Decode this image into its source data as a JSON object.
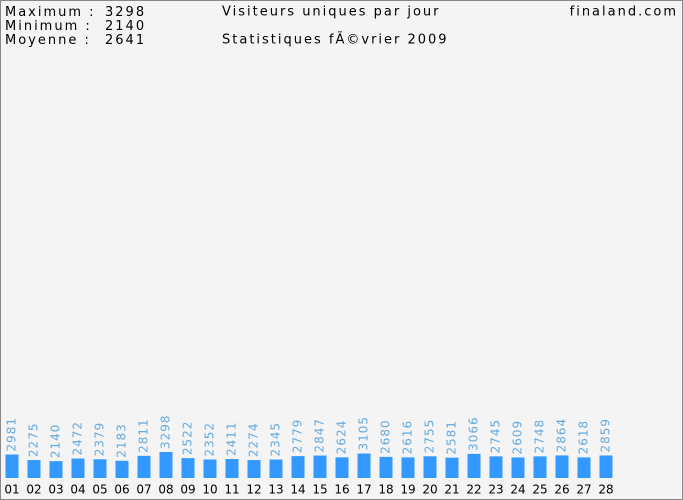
{
  "chart_data": {
    "type": "bar",
    "title": "Visiteurs uniques par jour",
    "subtitle": "Statistiques fÃ©vrier 2009",
    "site": "finaland.com",
    "stats": [
      {
        "label": "Maximum :",
        "value": 3298
      },
      {
        "label": "Minimum :",
        "value": 2140
      },
      {
        "label": "Moyenne :",
        "value": 2641
      }
    ],
    "categories": [
      "01",
      "02",
      "03",
      "04",
      "05",
      "06",
      "07",
      "08",
      "09",
      "10",
      "11",
      "12",
      "13",
      "14",
      "15",
      "16",
      "17",
      "18",
      "19",
      "20",
      "21",
      "22",
      "23",
      "24",
      "25",
      "26",
      "27",
      "28"
    ],
    "values": [
      2981,
      2275,
      2140,
      2472,
      2379,
      2183,
      2811,
      3298,
      2522,
      2352,
      2411,
      2274,
      2345,
      2779,
      2847,
      2624,
      3105,
      2680,
      2616,
      2755,
      2581,
      3066,
      2745,
      2609,
      2748,
      2864,
      2618,
      2859
    ],
    "color": "#3399ff",
    "label_color": "#66aadd"
  }
}
